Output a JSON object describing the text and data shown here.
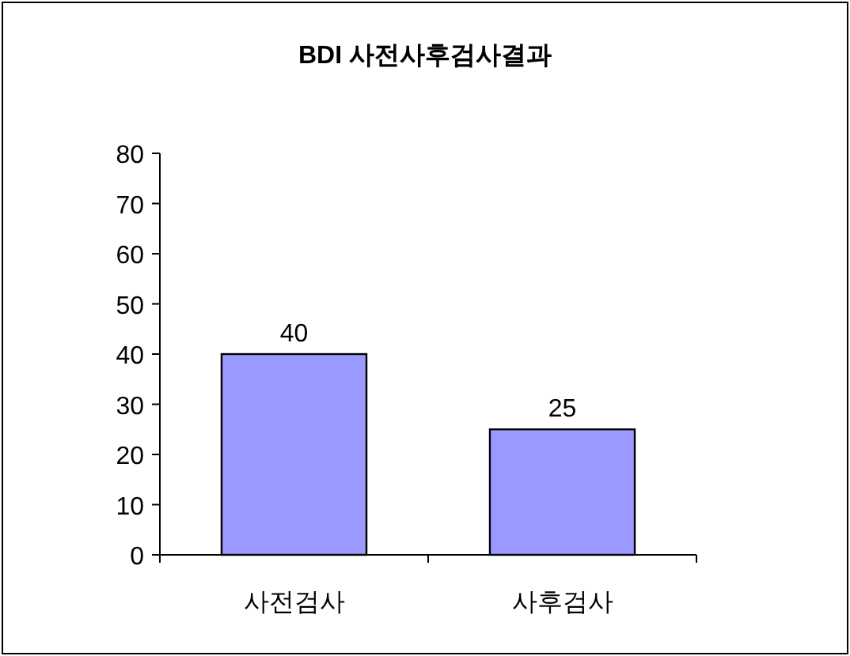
{
  "chart_data": {
    "type": "bar",
    "title": "BDI 사전사후검사결과",
    "categories": [
      "사전검사",
      "사후검사"
    ],
    "values": [
      40,
      25
    ],
    "color": "#9999ff",
    "ylim": [
      0,
      80
    ],
    "yticks": [
      0,
      10,
      20,
      30,
      40,
      50,
      60,
      70,
      80
    ],
    "data_labels": true
  }
}
